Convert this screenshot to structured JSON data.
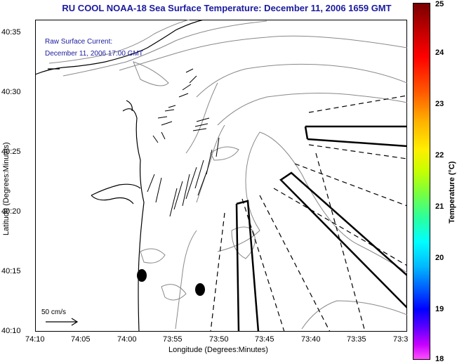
{
  "title": "RU COOL  NOAA-18  Sea Surface Temperature:  December 11, 2006 1659 GMT",
  "annotation": {
    "line1": "Raw Surface Current:",
    "line2": "December 11, 2006 17:00 GMT",
    "scale_label": "50 cm/s"
  },
  "axes": {
    "xlabel": "Longitude (Degrees:Minutes)",
    "ylabel": "Latitude (Degrees:Minutes)",
    "xticks": [
      "74:10",
      "74:05",
      "74:00",
      "73:55",
      "73:50",
      "73:45",
      "73:40",
      "73:35",
      "73:3"
    ],
    "yticks": [
      "40:35",
      "40:30",
      "40:25",
      "40:20",
      "40:15",
      "40:10"
    ]
  },
  "colorbar": {
    "label": "Temperature (°C)",
    "ticks": [
      "25",
      "24",
      "23",
      "22",
      "21",
      "20",
      "19",
      "18"
    ],
    "min": 18,
    "max": 25
  },
  "colors": {
    "title": "#1a1a9e",
    "coastline": "#000000",
    "contours": "#888888"
  }
}
